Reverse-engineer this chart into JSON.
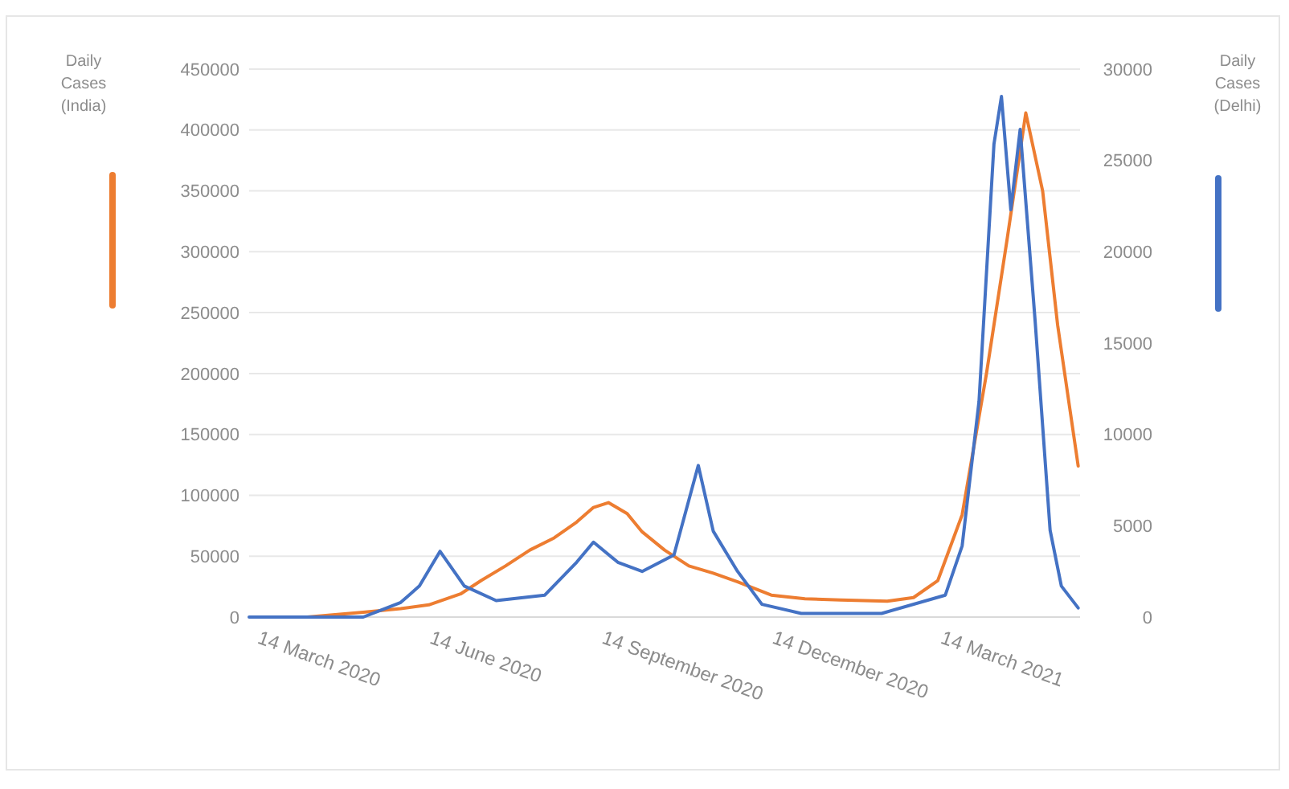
{
  "chart_data": {
    "type": "line",
    "ylabel": "Daily Cases (India)",
    "y2label": "Daily Cases (Delhi)",
    "xlim": [
      "2020-03-10",
      "2021-05-28"
    ],
    "xticks": [
      {
        "value": "2020-03-14",
        "label": "14 March 2020"
      },
      {
        "value": "2020-06-14",
        "label": "14 June 2020"
      },
      {
        "value": "2020-09-14",
        "label": "14 September 2020"
      },
      {
        "value": "2020-12-14",
        "label": "14 December 2020"
      },
      {
        "value": "2021-03-14",
        "label": "14 March 2021"
      }
    ],
    "ylim": [
      0,
      450000
    ],
    "yticks": [
      0,
      50000,
      100000,
      150000,
      200000,
      250000,
      300000,
      350000,
      400000,
      450000
    ],
    "y2lim": [
      0,
      30000
    ],
    "y2ticks": [
      0,
      5000,
      10000,
      15000,
      20000,
      25000,
      30000
    ],
    "grid": "y",
    "series": [
      {
        "color": "#ed7d31",
        "axis": "y",
        "x": [
          "2020-03-12",
          "2020-04-10",
          "2020-05-10",
          "2020-05-30",
          "2020-06-14",
          "2020-07-01",
          "2020-07-12",
          "2020-07-25",
          "2020-08-07",
          "2020-08-20",
          "2020-09-01",
          "2020-09-10",
          "2020-09-18",
          "2020-09-28",
          "2020-10-06",
          "2020-10-18",
          "2020-10-31",
          "2020-11-13",
          "2020-11-26",
          "2020-12-14",
          "2021-01-01",
          "2021-01-20",
          "2021-02-14",
          "2021-02-28",
          "2021-03-13",
          "2021-03-26",
          "2021-04-08",
          "2021-04-19",
          "2021-04-29",
          "2021-05-08",
          "2021-05-16",
          "2021-05-27"
        ],
        "values": [
          0,
          0,
          4000,
          7000,
          10000,
          19000,
          30000,
          42000,
          55000,
          65000,
          78000,
          90000,
          94000,
          85000,
          70000,
          55000,
          42000,
          36000,
          29000,
          18000,
          15000,
          14000,
          13000,
          16000,
          30000,
          84000,
          200000,
          310000,
          414000,
          350000,
          240000,
          124000
        ]
      },
      {
        "color": "#4472c4",
        "axis": "y2",
        "x": [
          "2020-03-10",
          "2020-04-10",
          "2020-05-10",
          "2020-05-30",
          "2020-06-09",
          "2020-06-20",
          "2020-07-03",
          "2020-07-20",
          "2020-08-15",
          "2020-09-01",
          "2020-09-10",
          "2020-09-23",
          "2020-10-06",
          "2020-10-23",
          "2020-11-05",
          "2020-11-13",
          "2020-11-26",
          "2020-12-09",
          "2020-12-30",
          "2021-02-11",
          "2021-03-17",
          "2021-03-26",
          "2021-04-04",
          "2021-04-12",
          "2021-04-16",
          "2021-04-21",
          "2021-04-26",
          "2021-05-04",
          "2021-05-12",
          "2021-05-18",
          "2021-05-27"
        ],
        "values": [
          0,
          0,
          0,
          800,
          1700,
          3600,
          1700,
          900,
          1200,
          3000,
          4100,
          3000,
          2500,
          3400,
          8300,
          4700,
          2500,
          700,
          200,
          200,
          1200,
          3900,
          11800,
          25900,
          28500,
          22300,
          26700,
          16200,
          4750,
          1700,
          500
        ]
      }
    ]
  }
}
